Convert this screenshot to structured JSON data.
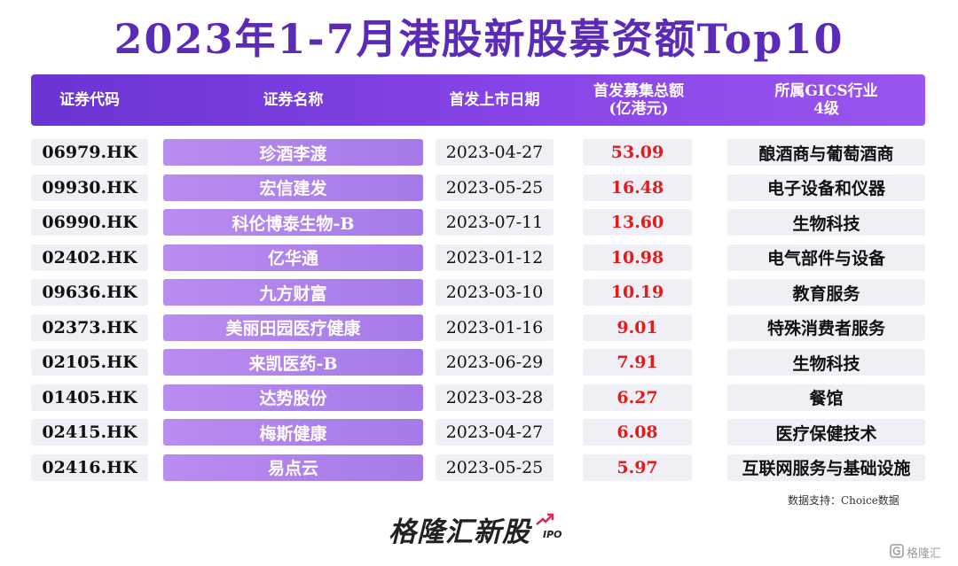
{
  "title": "2023年1-7月港股新股募资额Top10",
  "headers": {
    "code": "证券代码",
    "name": "证券名称",
    "date": "首发上市日期",
    "amount_l1": "首发募集总额",
    "amount_l2": "(亿港元)",
    "industry_l1": "所属GICS行业",
    "industry_l2": "4级"
  },
  "chart_data": {
    "type": "table",
    "title": "2023年1-7月港股新股募资额Top10",
    "columns": [
      "证券代码",
      "证券名称",
      "首发上市日期",
      "首发募集总额(亿港元)",
      "所属GICS行业4级"
    ],
    "rows": [
      {
        "code": "06979.HK",
        "name": "珍酒李渡",
        "date": "2023-04-27",
        "amount": "53.09",
        "industry": "酿酒商与葡萄酒商"
      },
      {
        "code": "09930.HK",
        "name": "宏信建发",
        "date": "2023-05-25",
        "amount": "16.48",
        "industry": "电子设备和仪器"
      },
      {
        "code": "06990.HK",
        "name": "科伦博泰生物-B",
        "date": "2023-07-11",
        "amount": "13.60",
        "industry": "生物科技"
      },
      {
        "code": "02402.HK",
        "name": "亿华通",
        "date": "2023-01-12",
        "amount": "10.98",
        "industry": "电气部件与设备"
      },
      {
        "code": "09636.HK",
        "name": "九方财富",
        "date": "2023-03-10",
        "amount": "10.19",
        "industry": "教育服务"
      },
      {
        "code": "02373.HK",
        "name": "美丽田园医疗健康",
        "date": "2023-01-16",
        "amount": "9.01",
        "industry": "特殊消费者服务"
      },
      {
        "code": "02105.HK",
        "name": "来凯医药-B",
        "date": "2023-06-29",
        "amount": "7.91",
        "industry": "生物科技"
      },
      {
        "code": "01405.HK",
        "name": "达势股份",
        "date": "2023-03-28",
        "amount": "6.27",
        "industry": "餐馆"
      },
      {
        "code": "02415.HK",
        "name": "梅斯健康",
        "date": "2023-04-27",
        "amount": "6.08",
        "industry": "医疗保健技术"
      },
      {
        "code": "02416.HK",
        "name": "易点云",
        "date": "2023-05-25",
        "amount": "5.97",
        "industry": "互联网服务与基础设施"
      }
    ]
  },
  "source": "数据支持：Choice数据",
  "logo": {
    "text": "格隆汇新股",
    "sub": "IPO"
  },
  "watermark": "格隆汇",
  "colors": {
    "accent": "#6a33d4",
    "amount": "#e31b1b",
    "name_bg": "#b98cf0",
    "cell_bg": "#f1eff6"
  }
}
